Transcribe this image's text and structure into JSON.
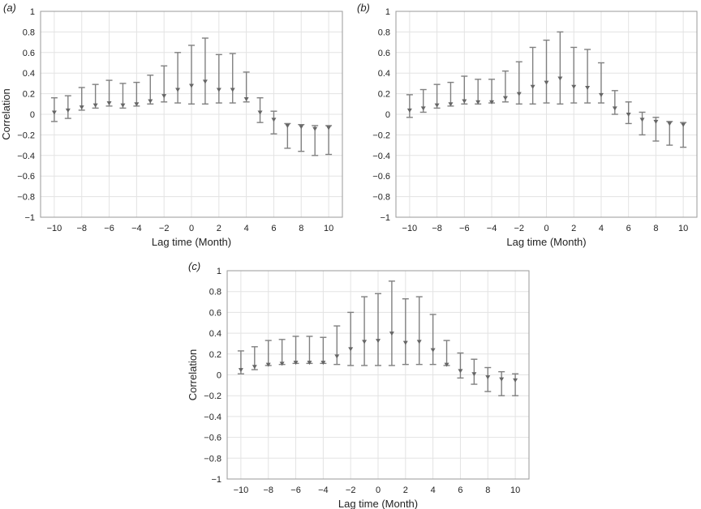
{
  "chart_data": [
    {
      "panel_label": "(a)",
      "type": "errorbar",
      "xlabel": "Lag time (Month)",
      "ylabel": "Correlation",
      "xlim": [
        -11,
        11
      ],
      "ylim": [
        -1,
        1
      ],
      "xticks": [
        -10,
        -8,
        -6,
        -4,
        -2,
        0,
        2,
        4,
        6,
        8,
        10
      ],
      "yticks": [
        1,
        0.8,
        0.6,
        0.4,
        0.2,
        0,
        -0.2,
        -0.4,
        -0.6,
        -0.8,
        -1
      ],
      "grid": true,
      "x": [
        -10,
        -9,
        -8,
        -7,
        -6,
        -5,
        -4,
        -3,
        -2,
        -1,
        0,
        1,
        2,
        3,
        4,
        5,
        6,
        7,
        8,
        9,
        10
      ],
      "y": [
        0.02,
        0.04,
        0.07,
        0.09,
        0.11,
        0.09,
        0.1,
        0.13,
        0.18,
        0.24,
        0.28,
        0.32,
        0.24,
        0.24,
        0.15,
        0.02,
        -0.05,
        -0.11,
        -0.12,
        -0.14,
        -0.13
      ],
      "lower": [
        -0.07,
        -0.04,
        0.04,
        0.06,
        0.08,
        0.06,
        0.08,
        0.1,
        0.12,
        0.11,
        0.1,
        0.1,
        0.11,
        0.11,
        0.12,
        -0.08,
        -0.19,
        -0.33,
        -0.36,
        -0.4,
        -0.39
      ],
      "upper": [
        0.16,
        0.18,
        0.26,
        0.29,
        0.33,
        0.3,
        0.31,
        0.38,
        0.47,
        0.6,
        0.67,
        0.74,
        0.58,
        0.59,
        0.41,
        0.16,
        0.03,
        -0.09,
        -0.1,
        -0.11,
        -0.11
      ]
    },
    {
      "panel_label": "(b)",
      "type": "errorbar",
      "xlabel": "Lag time (Month)",
      "ylabel": "",
      "xlim": [
        -11,
        11
      ],
      "ylim": [
        -1,
        1
      ],
      "xticks": [
        -10,
        -8,
        -6,
        -4,
        -2,
        0,
        2,
        4,
        6,
        8,
        10
      ],
      "yticks": [
        1,
        0.8,
        0.6,
        0.4,
        0.2,
        0,
        -0.2,
        -0.4,
        -0.6,
        -0.8,
        -1
      ],
      "grid": true,
      "x": [
        -10,
        -9,
        -8,
        -7,
        -6,
        -5,
        -4,
        -3,
        -2,
        -1,
        0,
        1,
        2,
        3,
        4,
        5,
        6,
        7,
        8,
        9,
        10
      ],
      "y": [
        0.04,
        0.06,
        0.09,
        0.1,
        0.13,
        0.12,
        0.12,
        0.16,
        0.2,
        0.27,
        0.31,
        0.35,
        0.27,
        0.26,
        0.19,
        0.06,
        0.0,
        -0.05,
        -0.07,
        -0.09,
        -0.1
      ],
      "lower": [
        -0.03,
        0.02,
        0.06,
        0.08,
        0.1,
        0.1,
        0.11,
        0.12,
        0.1,
        0.1,
        0.11,
        0.1,
        0.11,
        0.11,
        0.11,
        0.0,
        -0.09,
        -0.2,
        -0.26,
        -0.3,
        -0.32
      ],
      "upper": [
        0.19,
        0.24,
        0.29,
        0.31,
        0.37,
        0.34,
        0.34,
        0.42,
        0.51,
        0.65,
        0.72,
        0.8,
        0.65,
        0.63,
        0.5,
        0.23,
        0.12,
        0.02,
        -0.03,
        -0.07,
        -0.08
      ]
    },
    {
      "panel_label": "(c)",
      "type": "errorbar",
      "xlabel": "Lag time (Month)",
      "ylabel": "Correlation",
      "xlim": [
        -11,
        11
      ],
      "ylim": [
        -1,
        1
      ],
      "xticks": [
        -10,
        -8,
        -6,
        -4,
        -2,
        0,
        2,
        4,
        6,
        8,
        10
      ],
      "yticks": [
        1,
        0.8,
        0.6,
        0.4,
        0.2,
        0,
        -0.2,
        -0.4,
        -0.6,
        -0.8,
        -1
      ],
      "grid": true,
      "x": [
        -10,
        -9,
        -8,
        -7,
        -6,
        -5,
        -4,
        -3,
        -2,
        -1,
        0,
        1,
        2,
        3,
        4,
        5,
        6,
        7,
        8,
        9,
        10
      ],
      "y": [
        0.05,
        0.08,
        0.1,
        0.11,
        0.12,
        0.12,
        0.12,
        0.18,
        0.25,
        0.32,
        0.33,
        0.4,
        0.31,
        0.32,
        0.24,
        0.1,
        0.04,
        0.01,
        -0.02,
        -0.04,
        -0.05
      ],
      "lower": [
        0.01,
        0.05,
        0.09,
        0.1,
        0.11,
        0.11,
        0.11,
        0.1,
        0.09,
        0.09,
        0.09,
        0.09,
        0.1,
        0.1,
        0.1,
        0.09,
        -0.03,
        -0.09,
        -0.16,
        -0.2,
        -0.2
      ],
      "upper": [
        0.23,
        0.27,
        0.33,
        0.34,
        0.37,
        0.37,
        0.36,
        0.47,
        0.6,
        0.75,
        0.78,
        0.9,
        0.73,
        0.75,
        0.58,
        0.33,
        0.21,
        0.15,
        0.07,
        0.03,
        0.01
      ]
    }
  ]
}
